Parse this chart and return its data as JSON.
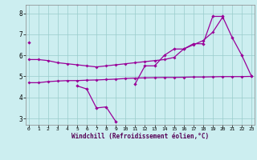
{
  "x_main": [
    0,
    1,
    2,
    3,
    4,
    5,
    6,
    7,
    8,
    9,
    10,
    11,
    12,
    13,
    14,
    15,
    16,
    17,
    18,
    19,
    20,
    21,
    22,
    23
  ],
  "curve_main": [
    6.6,
    null,
    null,
    null,
    null,
    4.55,
    4.4,
    3.5,
    3.55,
    2.85,
    null,
    4.65,
    5.5,
    5.5,
    6.0,
    6.3,
    6.3,
    6.55,
    6.55,
    7.85,
    7.85,
    6.85,
    6.0,
    5.0
  ],
  "curve_smooth": [
    5.8,
    5.8,
    5.75,
    5.65,
    5.6,
    5.55,
    5.5,
    5.45,
    5.5,
    5.55,
    5.6,
    5.65,
    5.7,
    5.75,
    5.8,
    5.9,
    6.3,
    6.5,
    6.7,
    7.1,
    7.8,
    null,
    null,
    null
  ],
  "curve_trend": [
    4.7,
    4.7,
    4.75,
    4.78,
    4.8,
    4.8,
    4.82,
    4.83,
    4.85,
    4.87,
    4.9,
    4.92,
    4.93,
    4.94,
    4.95,
    4.95,
    4.96,
    4.97,
    4.97,
    4.98,
    4.99,
    4.99,
    4.99,
    5.0
  ],
  "color": "#990099",
  "bg_color": "#cceef0",
  "grid_color": "#99cccc",
  "ylim": [
    2.7,
    8.4
  ],
  "xlim": [
    -0.3,
    23.3
  ],
  "xlabel": "Windchill (Refroidissement éolien,°C)",
  "yticks": [
    3,
    4,
    5,
    6,
    7,
    8
  ],
  "xticks": [
    0,
    1,
    2,
    3,
    4,
    5,
    6,
    7,
    8,
    9,
    10,
    11,
    12,
    13,
    14,
    15,
    16,
    17,
    18,
    19,
    20,
    21,
    22,
    23
  ]
}
